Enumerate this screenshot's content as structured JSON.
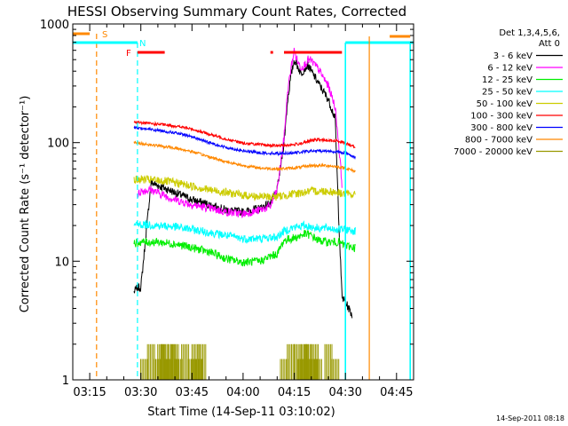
{
  "colors": {
    "3-6": "#000000",
    "6-12": "#ff00ff",
    "12-25": "#00ee00",
    "25-50": "#00ffff",
    "50-100": "#cccc00",
    "100-300": "#ff0000",
    "300-800": "#0000ff",
    "800-7000": "#ff8800",
    "7000-20000": "#999900",
    "orange_marker": "#ff8800",
    "cyan_marker": "#00ffff",
    "red_marker": "#ff0000"
  },
  "chart_data": {
    "type": "line",
    "title": "HESSI Observing Summary Count Rates, Corrected",
    "xlabel": "Start Time (14-Sep-11 03:10:02)",
    "ylabel": "Corrected Count Rate (s⁻¹ detector⁻¹)",
    "footer": "14-Sep-2011 08:18",
    "yscale": "log",
    "ylim": [
      1,
      1000
    ],
    "xlim": [
      "03:10:02",
      "04:50"
    ],
    "x_ticks": [
      "03:15",
      "03:30",
      "03:45",
      "04:00",
      "04:15",
      "04:30",
      "04:45"
    ],
    "y_ticks": [
      "1",
      "10",
      "100",
      "1000"
    ],
    "legend": {
      "header": [
        "Det 1,3,4,5,6,",
        "Att 0"
      ],
      "position": "right",
      "entries": [
        "3 - 6 keV",
        "6 - 12 keV",
        "12 - 25 keV",
        "25 - 50 keV",
        "50 - 100 keV",
        "100 - 300 keV",
        "300 - 800 keV",
        "800 - 7000 keV",
        "7000 - 20000 keV"
      ]
    },
    "series": [
      {
        "name": "3 - 6 keV",
        "color_key": "3-6",
        "x": [
          "03:28",
          "03:29",
          "03:30",
          "03:33",
          "03:40",
          "03:45",
          "03:50",
          "03:55",
          "04:00",
          "04:05",
          "04:08",
          "04:10",
          "04:12",
          "04:13",
          "04:14",
          "04:15",
          "04:16",
          "04:17",
          "04:18",
          "04:19",
          "04:20",
          "04:22",
          "04:25",
          "04:27",
          "04:28",
          "04:29",
          "04:30",
          "04:31",
          "04:32"
        ],
        "y": [
          5.5,
          6,
          6,
          46,
          38,
          33,
          30,
          27,
          26,
          28,
          31,
          40,
          100,
          220,
          360,
          500,
          440,
          380,
          420,
          450,
          400,
          320,
          230,
          160,
          25,
          5,
          4.5,
          4,
          3.5
        ]
      },
      {
        "name": "6 - 12 keV",
        "color_key": "6-12",
        "x": [
          "03:29",
          "03:30",
          "03:33",
          "03:40",
          "03:45",
          "03:50",
          "03:55",
          "04:00",
          "04:05",
          "04:08",
          "04:10",
          "04:12",
          "04:13",
          "04:14",
          "04:15",
          "04:16",
          "04:17",
          "04:18",
          "04:19",
          "04:20",
          "04:22",
          "04:25",
          "04:27",
          "04:28",
          "04:29"
        ],
        "y": [
          36,
          39,
          40,
          33,
          30,
          28,
          26,
          25,
          27,
          29,
          40,
          110,
          260,
          420,
          600,
          480,
          430,
          450,
          500,
          490,
          420,
          300,
          200,
          100,
          45
        ]
      },
      {
        "name": "12 - 25 keV",
        "color_key": "12-25",
        "x": [
          "03:28",
          "03:30",
          "03:35",
          "03:40",
          "03:45",
          "03:50",
          "03:55",
          "04:00",
          "04:05",
          "04:08",
          "04:10",
          "04:12",
          "04:14",
          "04:16",
          "04:18",
          "04:20",
          "04:22",
          "04:25",
          "04:28",
          "04:30",
          "04:33"
        ],
        "y": [
          14,
          14.5,
          14.5,
          14,
          13,
          12,
          10.5,
          9.8,
          10,
          11,
          11.5,
          15,
          15.5,
          16,
          17,
          16.5,
          15,
          14.5,
          14.5,
          13.5,
          13
        ]
      },
      {
        "name": "25 - 50 keV",
        "color_key": "25-50",
        "x": [
          "03:28",
          "03:30",
          "03:35",
          "03:40",
          "03:45",
          "03:50",
          "03:55",
          "04:00",
          "04:05",
          "04:10",
          "04:12",
          "04:14",
          "04:16",
          "04:18",
          "04:20",
          "04:22",
          "04:25",
          "04:28",
          "04:30",
          "04:33"
        ],
        "y": [
          20,
          20.5,
          20,
          19.5,
          18.5,
          17.5,
          16.5,
          15.5,
          15.5,
          16,
          18,
          19,
          19.5,
          20,
          19.5,
          19,
          19,
          18.5,
          18.5,
          18
        ]
      },
      {
        "name": "50 - 100 keV",
        "color_key": "50-100",
        "x": [
          "03:28",
          "03:30",
          "03:35",
          "03:40",
          "03:45",
          "03:50",
          "03:55",
          "04:00",
          "04:05",
          "04:10",
          "04:15",
          "04:20",
          "04:25",
          "04:30",
          "04:33"
        ],
        "y": [
          48,
          49,
          48,
          46,
          43,
          40,
          38,
          36,
          35,
          35,
          37,
          39,
          39,
          37,
          36
        ]
      },
      {
        "name": "100 - 300 keV",
        "color_key": "100-300",
        "x": [
          "03:28",
          "03:30",
          "03:35",
          "03:40",
          "03:45",
          "03:50",
          "03:55",
          "04:00",
          "04:05",
          "04:10",
          "04:15",
          "04:18",
          "04:20",
          "04:22",
          "04:25",
          "04:28",
          "04:30",
          "04:33"
        ],
        "y": [
          150,
          147,
          143,
          138,
          130,
          118,
          107,
          99,
          96,
          94,
          96,
          100,
          104,
          106,
          104,
          103,
          99,
          92
        ]
      },
      {
        "name": "300 - 800 keV",
        "color_key": "300-800",
        "x": [
          "03:28",
          "03:30",
          "03:35",
          "03:40",
          "03:45",
          "03:50",
          "03:55",
          "04:00",
          "04:05",
          "04:10",
          "04:15",
          "04:20",
          "04:25",
          "04:30",
          "04:33"
        ],
        "y": [
          135,
          132,
          127,
          121,
          112,
          100,
          91,
          85,
          82,
          81,
          82,
          85,
          85,
          82,
          75
        ]
      },
      {
        "name": "800 - 7000 keV",
        "color_key": "800-7000",
        "x": [
          "03:28",
          "03:30",
          "03:35",
          "03:40",
          "03:45",
          "03:50",
          "03:55",
          "04:00",
          "04:05",
          "04:10",
          "04:15",
          "04:20",
          "04:25",
          "04:30",
          "04:33"
        ],
        "y": [
          100,
          98,
          94,
          90,
          84,
          76,
          69,
          64,
          61,
          60,
          61,
          64,
          64,
          61,
          57
        ]
      },
      {
        "name": "7000 - 20000 keV",
        "color_key": "7000-20000",
        "x": [
          "03:31",
          "03:33",
          "03:35",
          "03:36",
          "03:37",
          "03:38",
          "03:39",
          "03:40",
          "03:41",
          "03:43",
          "03:45",
          "03:46",
          "03:47",
          "03:48",
          "04:12",
          "04:14",
          "04:16",
          "04:17",
          "04:18",
          "04:19",
          "04:20",
          "04:21",
          "04:22",
          "04:25",
          "04:27"
        ],
        "y": [
          1.5,
          2,
          1.5,
          2,
          2,
          1.5,
          2,
          2,
          1.5,
          2,
          1.5,
          2,
          1.5,
          2,
          1.5,
          2,
          2,
          1.5,
          2,
          2,
          1.5,
          2,
          1.5,
          2,
          1.5
        ]
      }
    ],
    "markers": {
      "S": {
        "label": "S",
        "color_key": "orange_marker",
        "bars": [
          [
            "03:10",
            "03:15"
          ]
        ],
        "lines": [
          "03:17"
        ]
      },
      "N": {
        "label": "N",
        "color_key": "cyan_marker",
        "bars": [
          [
            "03:10",
            "03:29"
          ],
          [
            "04:30",
            "04:50"
          ]
        ],
        "lines": [
          "03:29",
          "04:30",
          "04:49"
        ]
      },
      "F": {
        "label": "F",
        "color_key": "red_marker",
        "bars": [
          [
            "03:29",
            "03:37"
          ],
          [
            "04:08",
            "04:08"
          ],
          [
            "04:12",
            "04:29"
          ]
        ],
        "lines": []
      },
      "orange_right": {
        "label": "",
        "color_key": "orange_marker",
        "bars": [
          [
            "04:43",
            "04:49"
          ]
        ],
        "lines": [
          "04:37"
        ]
      }
    }
  }
}
